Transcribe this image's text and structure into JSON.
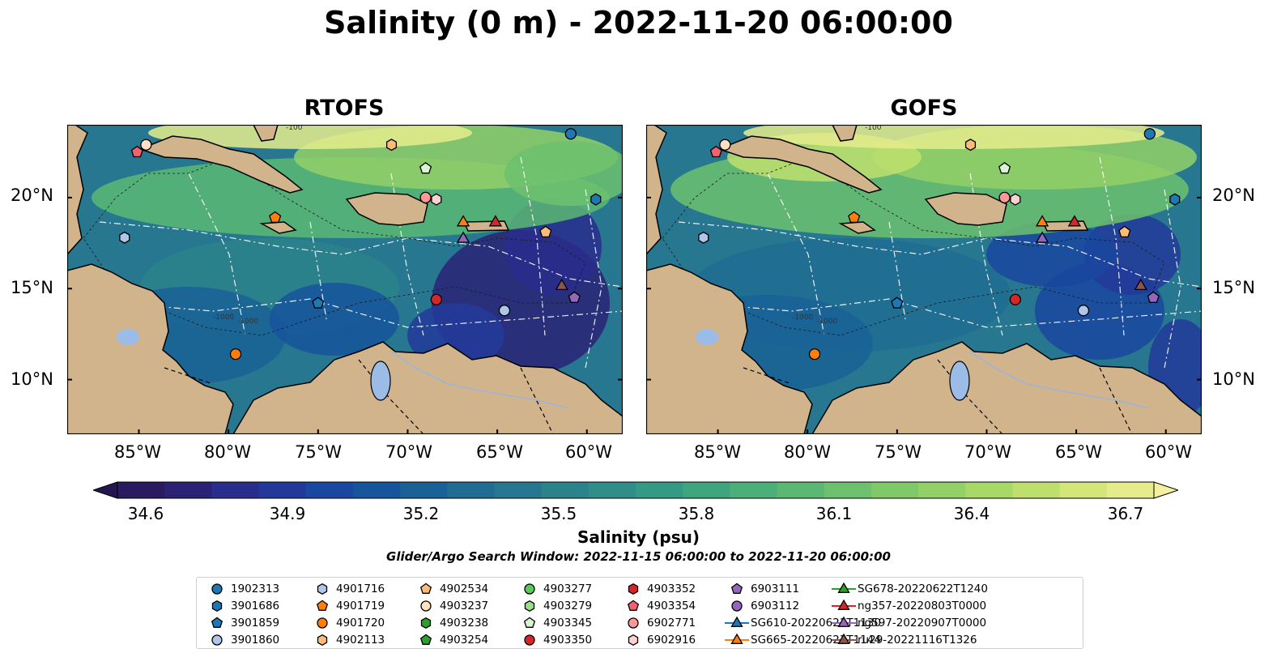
{
  "title": "Salinity (0 m) - 2022-11-20 06:00:00",
  "panels": [
    {
      "title": "RTOFS"
    },
    {
      "title": "GOFS"
    }
  ],
  "lat_labels": [
    "20°N",
    "15°N",
    "10°N"
  ],
  "lon_labels": [
    "85°W",
    "80°W",
    "75°W",
    "70°W",
    "65°W",
    "60°W"
  ],
  "contour_labels": [
    "-100",
    "-1000",
    "-1000"
  ],
  "colorbar": {
    "ticks": [
      "34.6",
      "34.9",
      "35.2",
      "35.5",
      "35.8",
      "36.1",
      "36.4",
      "36.7"
    ],
    "title": "Salinity (psu)",
    "min": 34.6,
    "max": 36.7,
    "colors": [
      "#2a1a5e",
      "#2b2275",
      "#292d8c",
      "#23399a",
      "#1a479f",
      "#16549c",
      "#1a6197",
      "#206c93",
      "#26778f",
      "#2b838b",
      "#2f8e87",
      "#359a83",
      "#3ea57e",
      "#4baf79",
      "#5bb873",
      "#6dc16e",
      "#80c969",
      "#93d067",
      "#a8d867",
      "#bedf6e",
      "#d4e67a",
      "#e6ec8c"
    ],
    "under_color": "#241650",
    "over_color": "#f4f0a0"
  },
  "search_window": "Glider/Argo Search Window: 2022-11-15 06:00:00 to 2022-11-20 06:00:00",
  "map_extent": {
    "lon": [
      -89,
      -58
    ],
    "lat": [
      7,
      24
    ]
  },
  "colors": {
    "land": "#d2b48c",
    "lake": "#9cbce8",
    "river": "#9cb4d8"
  },
  "legend": {
    "items": [
      {
        "label": "1902313",
        "marker": "circle",
        "color": "#1f77b4",
        "lon": -60.9,
        "lat": 23.5
      },
      {
        "label": "3901686",
        "marker": "hexagon",
        "color": "#1f77b4",
        "lon": -59.5,
        "lat": 19.9
      },
      {
        "label": "3901859",
        "marker": "pentagon",
        "color": "#1f77b4",
        "lon": -75.0,
        "lat": 14.2
      },
      {
        "label": "3901860",
        "marker": "circle",
        "color": "#aec7e8",
        "lon": -64.6,
        "lat": 13.8
      },
      {
        "label": "4901716",
        "marker": "hexagon",
        "color": "#aec7e8",
        "lon": -85.8,
        "lat": 17.8
      },
      {
        "label": "4901719",
        "marker": "pentagon",
        "color": "#ff7f0e",
        "lon": -77.4,
        "lat": 18.9
      },
      {
        "label": "4901720",
        "marker": "circle",
        "color": "#ff7f0e",
        "lon": -79.6,
        "lat": 11.4
      },
      {
        "label": "4902113",
        "marker": "hexagon",
        "color": "#ffbb78",
        "lon": -70.9,
        "lat": 22.9
      },
      {
        "label": "4902534",
        "marker": "pentagon",
        "color": "#ffbb78",
        "lon": -62.3,
        "lat": 18.1
      },
      {
        "label": "4903237",
        "marker": "circle",
        "color": "#ffe0c0",
        "lon": -84.6,
        "lat": 22.9
      },
      {
        "label": "4903238",
        "marker": "hexagon",
        "color": "#2ca02c",
        "lon": null,
        "lat": null
      },
      {
        "label": "4903254",
        "marker": "pentagon",
        "color": "#2ca02c",
        "lon": null,
        "lat": null
      },
      {
        "label": "4903277",
        "marker": "circle",
        "color": "#5cc85c",
        "lon": null,
        "lat": null
      },
      {
        "label": "4903279",
        "marker": "hexagon",
        "color": "#98df8a",
        "lon": null,
        "lat": null
      },
      {
        "label": "4903345",
        "marker": "pentagon",
        "color": "#d8f5d0",
        "lon": -69.0,
        "lat": 21.6
      },
      {
        "label": "4903350",
        "marker": "circle",
        "color": "#d62728",
        "lon": -68.4,
        "lat": 14.4
      },
      {
        "label": "4903352",
        "marker": "hexagon",
        "color": "#d62728",
        "lon": null,
        "lat": null
      },
      {
        "label": "4903354",
        "marker": "pentagon",
        "color": "#f0636e",
        "lon": -85.1,
        "lat": 22.5
      },
      {
        "label": "6902771",
        "marker": "circle",
        "color": "#ff9896",
        "lon": -69.0,
        "lat": 20.0
      },
      {
        "label": "6902916",
        "marker": "hexagon",
        "color": "#ffd0d0",
        "lon": -68.4,
        "lat": 19.9
      },
      {
        "label": "6903111",
        "marker": "pentagon",
        "color": "#9467bd",
        "lon": -60.7,
        "lat": 14.5
      },
      {
        "label": "6903112",
        "marker": "circle",
        "color": "#9467bd",
        "lon": null,
        "lat": null
      },
      {
        "label": "SG610-20220621T1130",
        "marker": "triangle-line",
        "color": "#1f77b4",
        "lon": null,
        "lat": null
      },
      {
        "label": "SG665-20220623T1144",
        "marker": "triangle-line",
        "color": "#ff7f0e",
        "lon": -66.9,
        "lat": 18.7
      },
      {
        "label": "SG678-20220622T1240",
        "marker": "triangle-line",
        "color": "#2ca02c",
        "lon": null,
        "lat": null
      },
      {
        "label": "ng357-20220803T0000",
        "marker": "triangle-line",
        "color": "#d62728",
        "lon": -65.1,
        "lat": 18.7
      },
      {
        "label": "ng597-20220907T0000",
        "marker": "triangle-line",
        "color": "#9467bd",
        "lon": -66.9,
        "lat": 17.8
      },
      {
        "label": "ru29-20221116T1326",
        "marker": "triangle-line",
        "color": "#8c564b",
        "lon": -61.4,
        "lat": 15.2
      }
    ]
  }
}
